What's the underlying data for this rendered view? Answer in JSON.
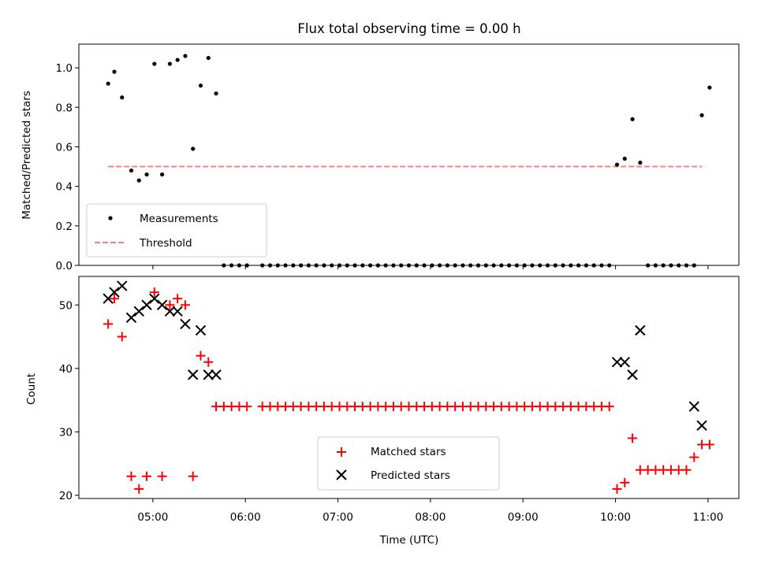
{
  "chart_data": [
    {
      "type": "scatter",
      "title": "Flux total observing time = 0.00 h",
      "xlabel": "",
      "ylabel": "Matched/Predicted stars",
      "ylim": [
        0,
        1.12
      ],
      "yticks": [
        0.0,
        0.2,
        0.4,
        0.6,
        0.8,
        1.0
      ],
      "ytick_labels": [
        "0.0",
        "0.2",
        "0.4",
        "0.6",
        "0.8",
        "1.0"
      ],
      "xlim": [
        "04:12",
        "11:20"
      ],
      "legend_position": "lower-left",
      "series": [
        {
          "name": "Measurements",
          "marker": "dot",
          "color": "#000000",
          "x": [
            "04:31",
            "04:35",
            "04:40",
            "04:46",
            "04:51",
            "04:56",
            "05:01",
            "05:06",
            "05:11",
            "05:16",
            "05:21",
            "05:26",
            "05:31",
            "05:36",
            "05:41",
            "05:46",
            "05:51",
            "05:56",
            "06:01",
            "06:11",
            "06:16",
            "06:21",
            "06:26",
            "06:31",
            "06:36",
            "06:41",
            "06:46",
            "06:51",
            "06:56",
            "07:01",
            "07:06",
            "07:11",
            "07:16",
            "07:21",
            "07:26",
            "07:31",
            "07:36",
            "07:41",
            "07:46",
            "07:51",
            "07:56",
            "08:01",
            "08:06",
            "08:11",
            "08:16",
            "08:21",
            "08:26",
            "08:31",
            "08:36",
            "08:41",
            "08:46",
            "08:51",
            "08:56",
            "09:01",
            "09:06",
            "09:11",
            "09:16",
            "09:21",
            "09:26",
            "09:31",
            "09:36",
            "09:41",
            "09:46",
            "09:51",
            "09:56",
            "10:01",
            "10:06",
            "10:11",
            "10:16",
            "10:21",
            "10:26",
            "10:31",
            "10:36",
            "10:41",
            "10:46",
            "10:51",
            "10:56",
            "11:01"
          ],
          "y": [
            0.92,
            0.98,
            0.85,
            0.48,
            0.43,
            0.46,
            1.02,
            0.46,
            1.02,
            1.04,
            1.06,
            0.59,
            0.91,
            1.05,
            0.87,
            0.0,
            0.0,
            0.0,
            0.0,
            0.0,
            0.0,
            0.0,
            0.0,
            0.0,
            0.0,
            0.0,
            0.0,
            0.0,
            0.0,
            0.0,
            0.0,
            0.0,
            0.0,
            0.0,
            0.0,
            0.0,
            0.0,
            0.0,
            0.0,
            0.0,
            0.0,
            0.0,
            0.0,
            0.0,
            0.0,
            0.0,
            0.0,
            0.0,
            0.0,
            0.0,
            0.0,
            0.0,
            0.0,
            0.0,
            0.0,
            0.0,
            0.0,
            0.0,
            0.0,
            0.0,
            0.0,
            0.0,
            0.0,
            0.0,
            0.0,
            0.51,
            0.54,
            0.74,
            0.52,
            0.0,
            0.0,
            0.0,
            0.0,
            0.0,
            0.0,
            0.0,
            0.76,
            0.9
          ]
        },
        {
          "name": "Threshold",
          "marker": "dashed-line",
          "color": "#ff7f7f",
          "x": [
            "04:31",
            "10:56"
          ],
          "y": [
            0.5,
            0.5
          ]
        }
      ]
    },
    {
      "type": "scatter",
      "title": "",
      "xlabel": "Time (UTC)",
      "ylabel": "Count",
      "ylim": [
        19.5,
        54.5
      ],
      "yticks": [
        20,
        30,
        40,
        50
      ],
      "ytick_labels": [
        "20",
        "30",
        "40",
        "50"
      ],
      "xlim": [
        "04:12",
        "11:20"
      ],
      "xticks": [
        "05:00",
        "06:00",
        "07:00",
        "08:00",
        "09:00",
        "10:00",
        "11:00"
      ],
      "xtick_labels": [
        "05:00",
        "06:00",
        "07:00",
        "08:00",
        "09:00",
        "10:00",
        "11:00"
      ],
      "legend_position": "bottom-center",
      "series": [
        {
          "name": "Matched stars",
          "marker": "plus",
          "color": "#ff0000",
          "x": [
            "04:31",
            "04:35",
            "04:40",
            "04:46",
            "04:51",
            "04:56",
            "05:01",
            "05:06",
            "05:11",
            "05:16",
            "05:21",
            "05:26",
            "05:31",
            "05:36",
            "05:41",
            "05:46",
            "05:51",
            "05:56",
            "06:01",
            "06:11",
            "06:16",
            "06:21",
            "06:26",
            "06:31",
            "06:36",
            "06:41",
            "06:46",
            "06:51",
            "06:56",
            "07:01",
            "07:06",
            "07:11",
            "07:16",
            "07:21",
            "07:26",
            "07:31",
            "07:36",
            "07:41",
            "07:46",
            "07:51",
            "07:56",
            "08:01",
            "08:06",
            "08:11",
            "08:16",
            "08:21",
            "08:26",
            "08:31",
            "08:36",
            "08:41",
            "08:46",
            "08:51",
            "08:56",
            "09:01",
            "09:06",
            "09:11",
            "09:16",
            "09:21",
            "09:26",
            "09:31",
            "09:36",
            "09:41",
            "09:46",
            "09:51",
            "09:56",
            "10:01",
            "10:06",
            "10:11",
            "10:16",
            "10:21",
            "10:26",
            "10:31",
            "10:36",
            "10:41",
            "10:46",
            "10:51",
            "10:56",
            "11:01"
          ],
          "y": [
            47,
            51,
            45,
            23,
            21,
            23,
            52,
            23,
            50,
            51,
            50,
            23,
            42,
            41,
            34,
            34,
            34,
            34,
            34,
            34,
            34,
            34,
            34,
            34,
            34,
            34,
            34,
            34,
            34,
            34,
            34,
            34,
            34,
            34,
            34,
            34,
            34,
            34,
            34,
            34,
            34,
            34,
            34,
            34,
            34,
            34,
            34,
            34,
            34,
            34,
            34,
            34,
            34,
            34,
            34,
            34,
            34,
            34,
            34,
            34,
            34,
            34,
            34,
            34,
            34,
            21,
            22,
            29,
            24,
            24,
            24,
            24,
            24,
            24,
            24,
            26,
            28,
            28
          ]
        },
        {
          "name": "Predicted stars",
          "marker": "x",
          "color": "#000000",
          "x": [
            "04:31",
            "04:35",
            "04:40",
            "04:46",
            "04:51",
            "04:56",
            "05:01",
            "05:06",
            "05:11",
            "05:16",
            "05:21",
            "05:26",
            "05:31",
            "05:36",
            "05:41",
            "10:01",
            "10:06",
            "10:11",
            "10:16",
            "10:51",
            "10:56"
          ],
          "y": [
            51,
            52,
            53,
            48,
            49,
            50,
            51,
            50,
            49,
            49,
            47,
            39,
            46,
            39,
            39,
            41,
            41,
            39,
            46,
            34,
            31
          ]
        }
      ]
    }
  ]
}
